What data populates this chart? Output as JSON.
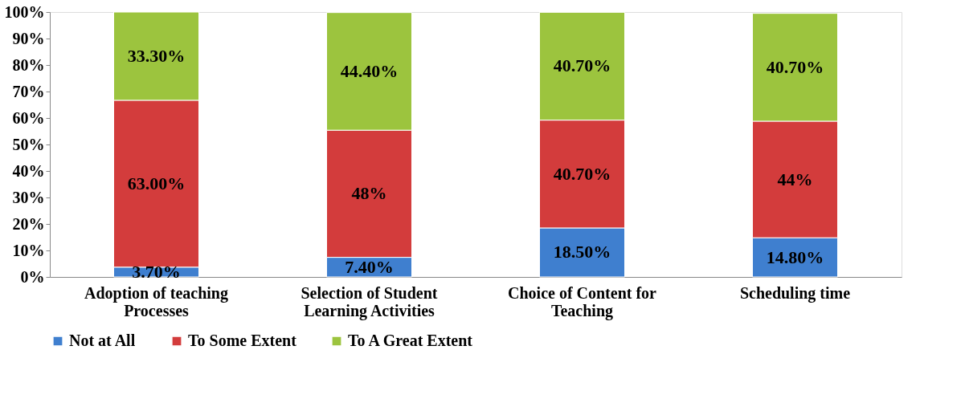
{
  "chart_data": {
    "type": "bar",
    "stacked": true,
    "categories": [
      "Adoption of teaching Processes",
      "Selection of Student Learning Activities",
      "Choice of Content for Teaching",
      "Scheduling time"
    ],
    "series": [
      {
        "name": "Not at All",
        "color": "#3f7fcf",
        "values": [
          3.7,
          7.4,
          18.5,
          14.8
        ],
        "value_labels": [
          "3.70%",
          "7.40%",
          "18.50%",
          "14.80%"
        ]
      },
      {
        "name": "To Some Extent",
        "color": "#d33c3c",
        "values": [
          63.0,
          48,
          40.7,
          44
        ],
        "value_labels": [
          "63.00%",
          "48%",
          "40.70%",
          "44%"
        ]
      },
      {
        "name": "To A Great Extent",
        "color": "#9cc43e",
        "values": [
          33.3,
          44.4,
          40.7,
          40.7
        ],
        "value_labels": [
          "33.30%",
          "44.40%",
          "40.70%",
          "40.70%"
        ]
      }
    ],
    "ylim": [
      0,
      100
    ],
    "yticks": [
      {
        "value": 0,
        "label": "0%"
      },
      {
        "value": 10,
        "label": "10%"
      },
      {
        "value": 20,
        "label": "20%"
      },
      {
        "value": 30,
        "label": "30%"
      },
      {
        "value": 40,
        "label": "40%"
      },
      {
        "value": 50,
        "label": "50%"
      },
      {
        "value": 60,
        "label": "60%"
      },
      {
        "value": 70,
        "label": "70%"
      },
      {
        "value": 80,
        "label": "80%"
      },
      {
        "value": 90,
        "label": "90%"
      },
      {
        "value": 100,
        "label": "100%"
      }
    ],
    "grid": false,
    "legend": "bottom"
  }
}
